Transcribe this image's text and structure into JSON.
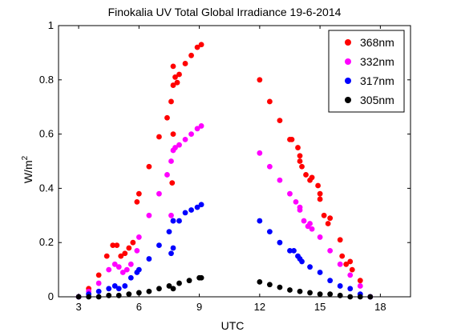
{
  "chart_data": {
    "type": "scatter",
    "title": "Finokalia UV Total Global Irradiance 19-6-2014",
    "xlabel": "UTC",
    "ylabel": "W/m",
    "ylabel_superscript": "2",
    "xlim": [
      2,
      19.5
    ],
    "ylim": [
      0,
      1
    ],
    "x_ticks": [
      3,
      6,
      9,
      12,
      15,
      18
    ],
    "y_ticks": [
      0,
      0.2,
      0.4,
      0.6,
      0.8,
      1
    ],
    "x_tick_labels": [
      "3",
      "6",
      "9",
      "12",
      "15",
      "18"
    ],
    "y_tick_labels": [
      "0",
      "0.2",
      "0.4",
      "0.6",
      "0.8",
      "1"
    ],
    "grid": false,
    "legend_position": "top-right",
    "marker": "filled-circle",
    "series": [
      {
        "name": "368nm",
        "color": "#ff0000",
        "x": [
          3.0,
          3.5,
          4.0,
          4.4,
          4.7,
          4.9,
          5.1,
          5.3,
          5.5,
          5.7,
          5.9,
          6.0,
          6.5,
          7.0,
          7.4,
          7.6,
          7.7,
          7.8,
          7.9,
          8.0,
          8.3,
          8.6,
          8.9,
          9.1,
          7.7,
          7.7,
          7.65,
          12.0,
          12.5,
          13.0,
          13.5,
          14.0,
          14.5,
          15.0,
          15.5,
          16.0,
          16.5,
          17.0,
          17.5,
          13.6,
          13.9,
          14.0,
          14.1,
          14.3,
          14.6,
          14.9,
          15.0,
          15.2,
          15.4,
          16.1,
          16.3,
          16.6
        ],
        "y": [
          0.0,
          0.03,
          0.08,
          0.15,
          0.19,
          0.19,
          0.15,
          0.16,
          0.18,
          0.2,
          0.35,
          0.38,
          0.48,
          0.59,
          0.66,
          0.72,
          0.78,
          0.81,
          0.79,
          0.82,
          0.86,
          0.89,
          0.92,
          0.93,
          0.85,
          0.6,
          0.42,
          0.8,
          0.72,
          0.65,
          0.58,
          0.5,
          0.43,
          0.36,
          0.29,
          0.21,
          0.13,
          0.06,
          0.0,
          0.58,
          0.55,
          0.52,
          0.48,
          0.45,
          0.44,
          0.41,
          0.38,
          0.3,
          0.27,
          0.15,
          0.12,
          0.1
        ]
      },
      {
        "name": "332nm",
        "color": "#ff00ff",
        "x": [
          3.0,
          3.5,
          4.0,
          4.5,
          4.8,
          5.0,
          5.2,
          5.4,
          5.6,
          5.9,
          6.0,
          6.5,
          7.0,
          7.4,
          7.6,
          7.7,
          7.8,
          8.0,
          8.3,
          8.6,
          8.9,
          9.1,
          7.6,
          7.7,
          12.0,
          12.5,
          13.0,
          13.5,
          14.0,
          14.5,
          15.0,
          15.5,
          16.0,
          16.5,
          17.0,
          17.5,
          13.8,
          14.0,
          14.2,
          14.4,
          14.6
        ],
        "y": [
          0.0,
          0.02,
          0.05,
          0.1,
          0.12,
          0.11,
          0.09,
          0.1,
          0.12,
          0.17,
          0.22,
          0.3,
          0.38,
          0.45,
          0.5,
          0.54,
          0.55,
          0.56,
          0.58,
          0.6,
          0.62,
          0.63,
          0.3,
          0.28,
          0.53,
          0.48,
          0.43,
          0.38,
          0.32,
          0.27,
          0.22,
          0.17,
          0.12,
          0.08,
          0.04,
          0.0,
          0.35,
          0.33,
          0.28,
          0.26,
          0.25
        ]
      },
      {
        "name": "317nm",
        "color": "#0000ff",
        "x": [
          3.0,
          3.5,
          4.0,
          4.5,
          4.8,
          5.0,
          5.3,
          5.6,
          5.9,
          6.0,
          6.5,
          7.0,
          7.5,
          7.7,
          8.0,
          8.3,
          8.6,
          8.9,
          9.1,
          7.6,
          7.7,
          12.0,
          12.5,
          13.0,
          13.5,
          14.0,
          14.5,
          15.0,
          15.5,
          16.0,
          16.5,
          17.0,
          17.5,
          13.7,
          13.9,
          14.1
        ],
        "y": [
          0.0,
          0.01,
          0.02,
          0.03,
          0.04,
          0.03,
          0.04,
          0.07,
          0.09,
          0.1,
          0.14,
          0.19,
          0.24,
          0.28,
          0.28,
          0.31,
          0.32,
          0.33,
          0.34,
          0.16,
          0.18,
          0.28,
          0.24,
          0.2,
          0.17,
          0.14,
          0.11,
          0.09,
          0.06,
          0.04,
          0.03,
          0.01,
          0.0,
          0.17,
          0.15,
          0.13
        ]
      },
      {
        "name": "305nm",
        "color": "#000000",
        "x": [
          3.0,
          3.5,
          4.0,
          4.5,
          5.0,
          5.5,
          6.0,
          6.5,
          7.0,
          7.5,
          7.7,
          8.0,
          8.5,
          9.0,
          9.1,
          12.0,
          12.5,
          13.0,
          13.5,
          14.0,
          14.5,
          15.0,
          15.5,
          16.0,
          16.5,
          17.0,
          17.5
        ],
        "y": [
          0.0,
          0.0,
          0.0,
          0.005,
          0.005,
          0.01,
          0.015,
          0.02,
          0.03,
          0.04,
          0.03,
          0.05,
          0.06,
          0.07,
          0.07,
          0.055,
          0.045,
          0.035,
          0.025,
          0.02,
          0.015,
          0.01,
          0.01,
          0.005,
          0.0,
          0.0,
          0.0
        ]
      }
    ]
  }
}
